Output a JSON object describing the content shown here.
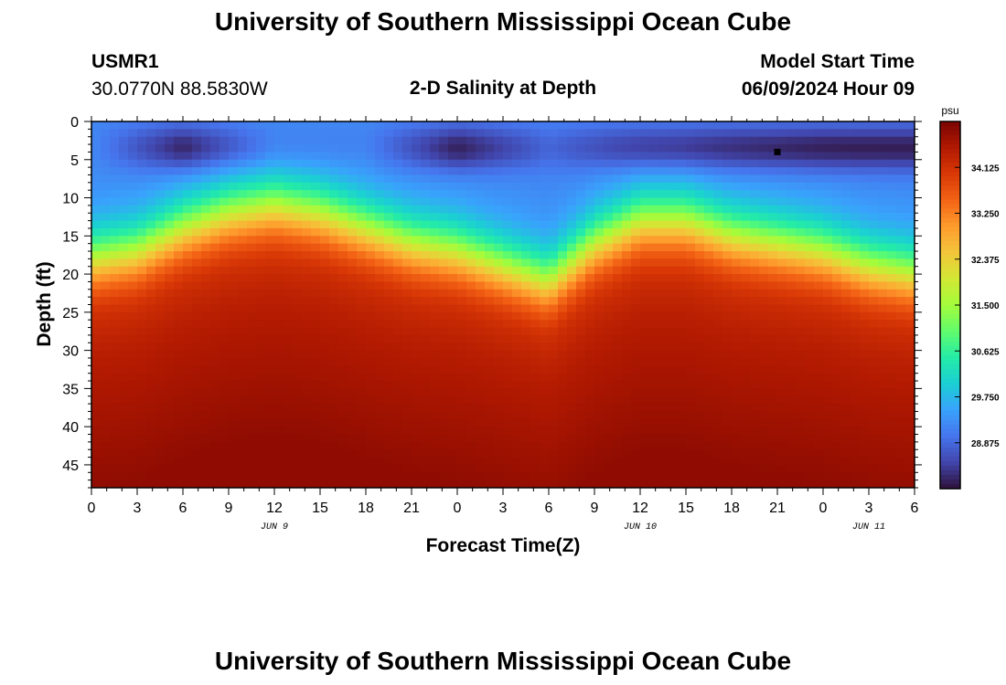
{
  "page": {
    "title": "University of Southern Mississippi Ocean Cube",
    "footer_title": "University of Southern Mississippi Ocean Cube",
    "station_id": "USMR1",
    "station_coords": "30.0770N  88.5830W",
    "subtitle": "2-D Salinity at Depth",
    "model_start_label": "Model Start Time",
    "model_start_value": "06/09/2024 Hour 09"
  },
  "colors": {
    "colormap": [
      "#30123b",
      "#4145ab",
      "#4675ed",
      "#39a2fc",
      "#1bcfd4",
      "#24eca6",
      "#61fc6c",
      "#a4fc3b",
      "#d1e834",
      "#f3c63a",
      "#fe9b2d",
      "#f36315",
      "#d93806",
      "#b11901",
      "#7a0402"
    ],
    "marker": "#000000"
  },
  "chart_data": {
    "type": "heatmap",
    "title": "2-D Salinity at Depth",
    "xlabel": "Forecast Time(Z)",
    "ylabel": "Depth (ft)",
    "x_tick_labels": [
      "0",
      "3",
      "6",
      "9",
      "12",
      "15",
      "18",
      "21",
      "0",
      "3",
      "6",
      "9",
      "12",
      "15",
      "18",
      "21",
      "0",
      "3",
      "6"
    ],
    "x_range_hours": [
      0,
      54
    ],
    "date_labels": [
      {
        "text": "JUN 9",
        "hour": 12
      },
      {
        "text": "JUN 10",
        "hour": 36
      },
      {
        "text": "JUN 11",
        "hour": 51
      }
    ],
    "y_tick_labels": [
      "0",
      "5",
      "10",
      "15",
      "20",
      "25",
      "30",
      "35",
      "40",
      "45"
    ],
    "ylim": [
      0,
      48
    ],
    "y_inverted": true,
    "colorbar": {
      "unit": "psu",
      "ticks": [
        "34.125",
        "33.250",
        "32.375",
        "31.500",
        "30.625",
        "29.750",
        "28.875"
      ],
      "range": [
        28.0,
        35.0
      ]
    },
    "marker_point": {
      "hour": 45,
      "depth_ft": 4
    },
    "field_model": {
      "description": "approximate halocline depth (ft) vs hour",
      "halocline_hours": [
        0,
        3,
        6,
        9,
        12,
        15,
        18,
        21,
        24,
        27,
        30,
        33,
        36,
        39,
        42,
        45,
        48,
        51,
        54
      ],
      "halocline_depth_ft": [
        18,
        17,
        14,
        12,
        11,
        12,
        14,
        16,
        17,
        19,
        21,
        16,
        13,
        13,
        15,
        16,
        17,
        19,
        20
      ],
      "surface_salinity": 29.2,
      "deep_salinity": 34.4,
      "fresh_lens_hours": [
        0,
        6,
        12,
        18,
        24,
        30,
        36,
        42,
        48,
        54
      ],
      "fresh_lens_strength": [
        0,
        0.9,
        0.2,
        0.1,
        0.9,
        0.3,
        0.7,
        0.8,
        0.9,
        0.9
      ]
    }
  }
}
